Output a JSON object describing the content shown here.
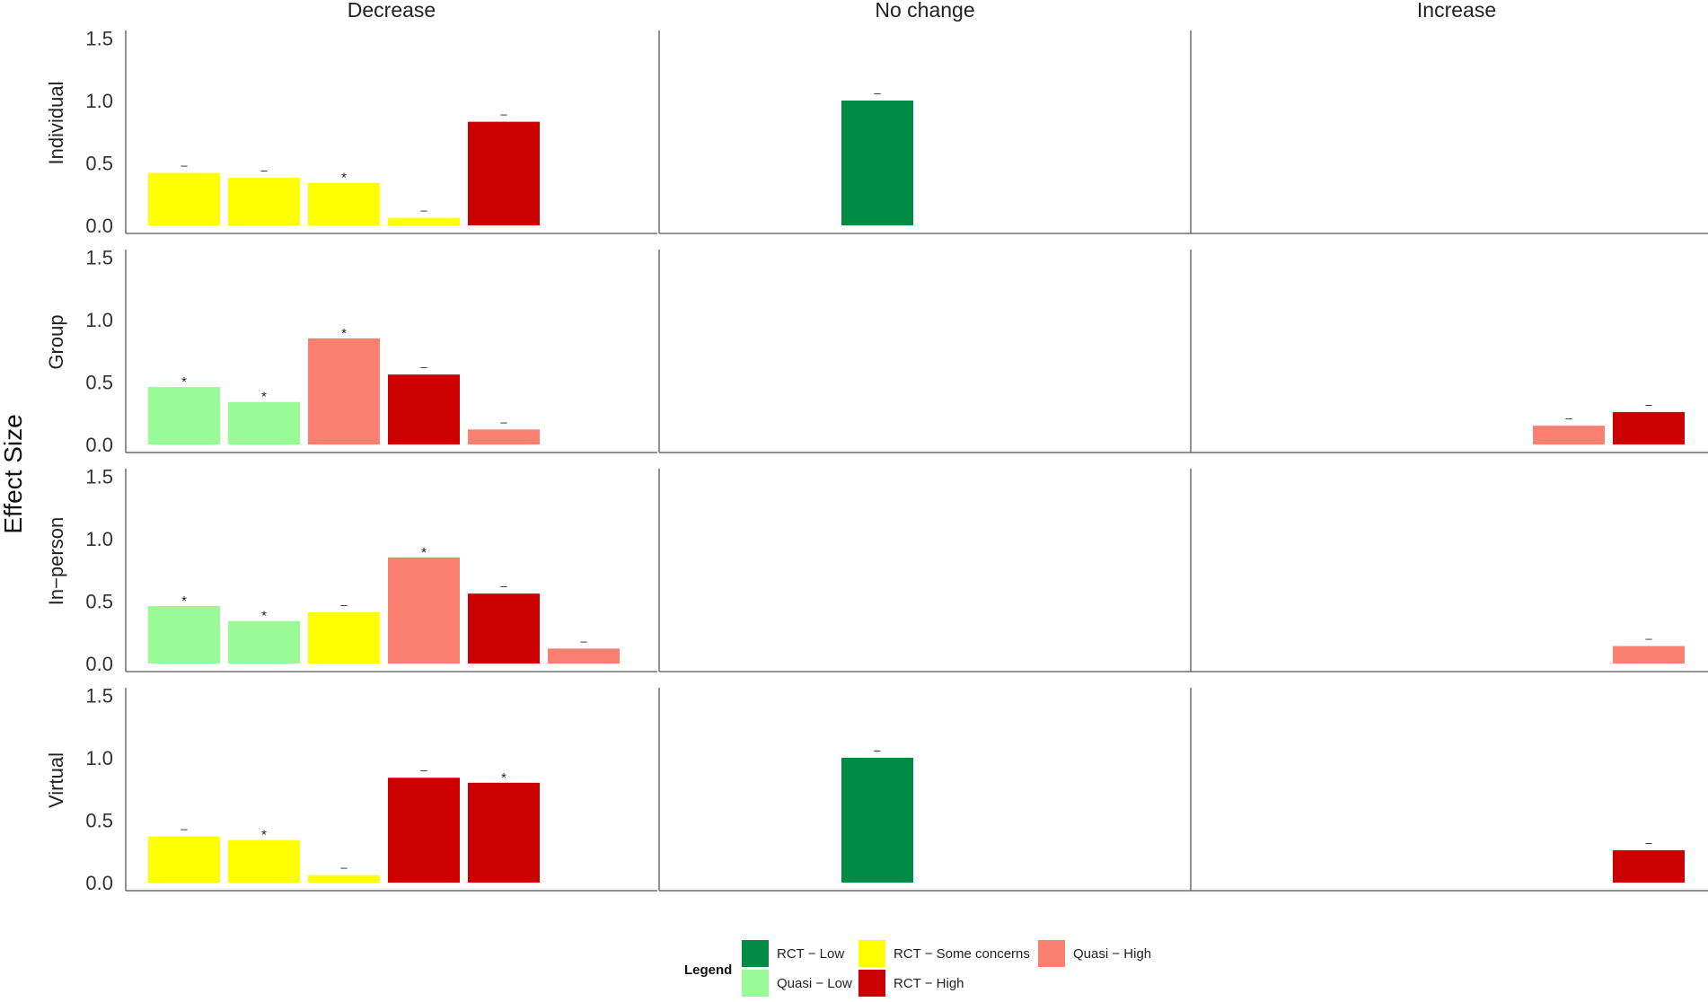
{
  "chart_data": {
    "type": "bar",
    "ylabel": "Effect Size",
    "ylim": [
      0,
      1.5
    ],
    "yticks": [
      "0.0",
      "0.5",
      "1.0",
      "1.5"
    ],
    "columns": [
      "Decrease",
      "No change",
      "Increase"
    ],
    "rows": [
      "Individual",
      "Group",
      "In−person",
      "Virtual"
    ],
    "grid": false,
    "legend": {
      "title": "Legend",
      "position": "bottom",
      "items": [
        {
          "key": "rct_low",
          "label": "RCT − Low",
          "color": "#008B45"
        },
        {
          "key": "quasi_low",
          "label": "Quasi − Low",
          "color": "#98FB98"
        },
        {
          "key": "rct_some",
          "label": "RCT − Some concerns",
          "color": "#FFFF00"
        },
        {
          "key": "rct_high",
          "label": "RCT − High",
          "color": "#CC0000"
        },
        {
          "key": "quasi_high",
          "label": "Quasi − High",
          "color": "#FA8072"
        }
      ]
    },
    "panels": [
      {
        "row": "Individual",
        "column": "Decrease",
        "bars": [
          {
            "slot": 0,
            "value": 0.42,
            "category": "rct_some",
            "label": "–"
          },
          {
            "slot": 1,
            "value": 0.38,
            "category": "rct_some",
            "label": "–"
          },
          {
            "slot": 2,
            "value": 0.34,
            "category": "rct_some",
            "label": "*"
          },
          {
            "slot": 3,
            "value": 0.06,
            "category": "rct_some",
            "label": "–"
          },
          {
            "slot": 4,
            "value": 0.83,
            "category": "rct_high",
            "label": "–"
          }
        ]
      },
      {
        "row": "Individual",
        "column": "No change",
        "bars": [
          {
            "slot": 2,
            "value": 1.0,
            "category": "rct_low",
            "label": "–"
          }
        ]
      },
      {
        "row": "Individual",
        "column": "Increase",
        "bars": []
      },
      {
        "row": "Group",
        "column": "Decrease",
        "bars": [
          {
            "slot": 0,
            "value": 0.46,
            "category": "quasi_low",
            "label": "*"
          },
          {
            "slot": 1,
            "value": 0.34,
            "category": "quasi_low",
            "label": "*"
          },
          {
            "slot": 2,
            "value": 0.85,
            "category": "quasi_high",
            "label": "*"
          },
          {
            "slot": 3,
            "value": 0.56,
            "category": "rct_high",
            "label": "–"
          },
          {
            "slot": 4,
            "value": 0.12,
            "category": "quasi_high",
            "label": "–"
          }
        ]
      },
      {
        "row": "Group",
        "column": "No change",
        "bars": []
      },
      {
        "row": "Group",
        "column": "Increase",
        "bars": [
          {
            "slot": 4,
            "value": 0.15,
            "category": "quasi_high",
            "label": "–"
          },
          {
            "slot": 5,
            "value": 0.26,
            "category": "rct_high",
            "label": "–"
          }
        ]
      },
      {
        "row": "In−person",
        "column": "Decrease",
        "bars": [
          {
            "slot": 0,
            "value": 0.46,
            "category": "quasi_low",
            "label": "*"
          },
          {
            "slot": 1,
            "value": 0.34,
            "category": "quasi_low",
            "label": "*"
          },
          {
            "slot": 2,
            "value": 0.41,
            "category": "rct_some",
            "label": "–"
          },
          {
            "slot": 3,
            "value": 0.85,
            "category": "quasi_high",
            "label": "*"
          },
          {
            "slot": 4,
            "value": 0.56,
            "category": "rct_high",
            "label": "–"
          },
          {
            "slot": 5,
            "value": 0.12,
            "category": "quasi_high",
            "label": "–"
          }
        ]
      },
      {
        "row": "In−person",
        "column": "No change",
        "bars": []
      },
      {
        "row": "In−person",
        "column": "Increase",
        "bars": [
          {
            "slot": 5,
            "value": 0.14,
            "category": "quasi_high",
            "label": "–"
          }
        ]
      },
      {
        "row": "Virtual",
        "column": "Decrease",
        "bars": [
          {
            "slot": 0,
            "value": 0.37,
            "category": "rct_some",
            "label": "–"
          },
          {
            "slot": 1,
            "value": 0.34,
            "category": "rct_some",
            "label": "*"
          },
          {
            "slot": 2,
            "value": 0.06,
            "category": "rct_some",
            "label": "–"
          },
          {
            "slot": 3,
            "value": 0.84,
            "category": "rct_high",
            "label": "–"
          },
          {
            "slot": 4,
            "value": 0.8,
            "category": "rct_high",
            "label": "*"
          }
        ]
      },
      {
        "row": "Virtual",
        "column": "No change",
        "bars": [
          {
            "slot": 2,
            "value": 1.0,
            "category": "rct_low",
            "label": "–"
          }
        ]
      },
      {
        "row": "Virtual",
        "column": "Increase",
        "bars": [
          {
            "slot": 5,
            "value": 0.26,
            "category": "rct_high",
            "label": "–"
          }
        ]
      }
    ]
  }
}
